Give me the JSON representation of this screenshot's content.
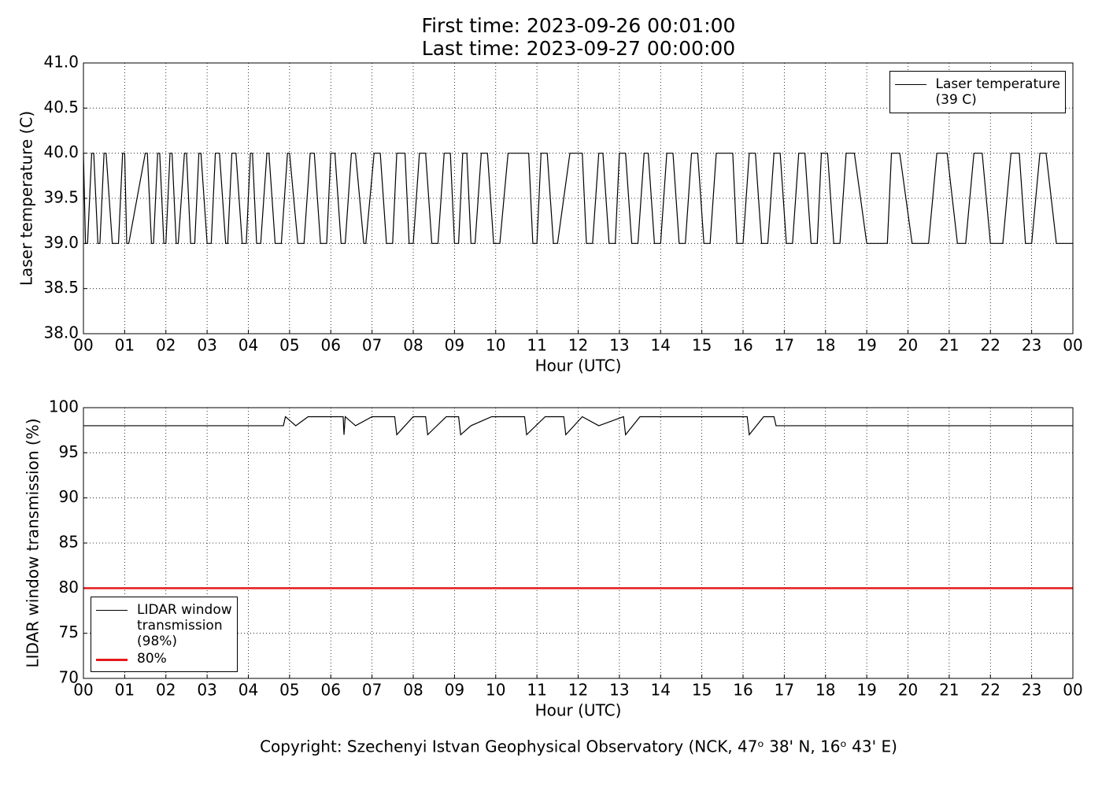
{
  "header": {
    "line1": "First time: 2023-09-26 00:01:00",
    "line2": "Last time: 2023-09-27 00:00:00"
  },
  "footer": "Copyright: Szechenyi Istvan Geophysical Observatory (NCK, 47ᵒ 38' N, 16ᵒ 43' E)",
  "chart_data": [
    {
      "type": "line",
      "ylabel": "Laser temperature (C)",
      "xlabel": "Hour (UTC)",
      "xlim": [
        0,
        24
      ],
      "ylim": [
        38,
        41
      ],
      "grid": true,
      "legend": "upper right",
      "xticks": [
        {
          "value": 0,
          "label": "00"
        },
        {
          "value": 1,
          "label": "01"
        },
        {
          "value": 2,
          "label": "02"
        },
        {
          "value": 3,
          "label": "03"
        },
        {
          "value": 4,
          "label": "04"
        },
        {
          "value": 5,
          "label": "05"
        },
        {
          "value": 6,
          "label": "06"
        },
        {
          "value": 7,
          "label": "07"
        },
        {
          "value": 8,
          "label": "08"
        },
        {
          "value": 9,
          "label": "09"
        },
        {
          "value": 10,
          "label": "10"
        },
        {
          "value": 11,
          "label": "11"
        },
        {
          "value": 12,
          "label": "12"
        },
        {
          "value": 13,
          "label": "13"
        },
        {
          "value": 14,
          "label": "14"
        },
        {
          "value": 15,
          "label": "15"
        },
        {
          "value": 16,
          "label": "16"
        },
        {
          "value": 17,
          "label": "17"
        },
        {
          "value": 18,
          "label": "18"
        },
        {
          "value": 19,
          "label": "19"
        },
        {
          "value": 20,
          "label": "20"
        },
        {
          "value": 21,
          "label": "21"
        },
        {
          "value": 22,
          "label": "22"
        },
        {
          "value": 23,
          "label": "23"
        },
        {
          "value": 24,
          "label": "00"
        }
      ],
      "yticks": [
        {
          "value": 38,
          "label": "38.0"
        },
        38.5,
        {
          "value": 39,
          "label": "39.0"
        },
        39.5,
        {
          "value": 40,
          "label": "40.0"
        },
        40.5,
        {
          "value": 41,
          "label": "41.0"
        }
      ],
      "series": [
        {
          "name": "Laser temperature\n(39 C)",
          "color": "#000000",
          "x": [
            0,
            0.05,
            0.1,
            0.2,
            0.25,
            0.35,
            0.4,
            0.5,
            0.55,
            0.7,
            0.85,
            0.95,
            1.0,
            1.05,
            1.1,
            1.5,
            1.55,
            1.65,
            1.7,
            1.8,
            1.85,
            1.95,
            2.0,
            2.1,
            2.15,
            2.25,
            2.3,
            2.45,
            2.5,
            2.6,
            2.7,
            2.8,
            2.85,
            3.0,
            3.1,
            3.2,
            3.3,
            3.45,
            3.5,
            3.6,
            3.7,
            3.85,
            3.95,
            4.05,
            4.1,
            4.2,
            4.3,
            4.45,
            4.5,
            4.65,
            4.8,
            4.95,
            5.0,
            5.2,
            5.35,
            5.5,
            5.6,
            5.75,
            5.9,
            6.0,
            6.1,
            6.25,
            6.35,
            6.5,
            6.6,
            6.8,
            6.85,
            7.05,
            7.2,
            7.35,
            7.5,
            7.6,
            7.8,
            7.9,
            8.0,
            8.15,
            8.3,
            8.45,
            8.6,
            8.75,
            8.9,
            9.0,
            9.1,
            9.2,
            9.3,
            9.4,
            9.5,
            9.65,
            9.8,
            9.95,
            10.1,
            10.3,
            10.8,
            10.9,
            11.0,
            11.1,
            11.25,
            11.4,
            11.5,
            11.8,
            12.1,
            12.2,
            12.35,
            12.5,
            12.6,
            12.75,
            12.9,
            13.0,
            13.15,
            13.3,
            13.45,
            13.6,
            13.7,
            13.85,
            14.0,
            14.15,
            14.3,
            14.45,
            14.6,
            14.75,
            14.9,
            15.05,
            15.2,
            15.35,
            15.75,
            15.85,
            16.0,
            16.15,
            16.3,
            16.45,
            16.6,
            16.75,
            16.9,
            17.05,
            17.2,
            17.35,
            17.5,
            17.65,
            17.8,
            17.9,
            18.05,
            18.2,
            18.35,
            18.5,
            18.7,
            19.0,
            19.5,
            19.6,
            19.8,
            20.1,
            20.5,
            20.7,
            20.95,
            21.2,
            21.4,
            21.6,
            21.8,
            22.0,
            22.3,
            22.5,
            22.7,
            22.85,
            23.0,
            23.2,
            23.35,
            23.6,
            24
          ],
          "values": [
            40,
            39,
            39,
            40,
            40,
            39,
            39,
            40,
            40,
            39,
            39,
            40,
            40,
            39,
            39,
            40,
            40,
            39,
            39,
            40,
            40,
            39,
            39,
            40,
            40,
            39,
            39,
            40,
            40,
            39,
            39,
            40,
            40,
            39,
            39,
            40,
            40,
            39,
            39,
            40,
            40,
            39,
            39,
            40,
            40,
            39,
            39,
            40,
            40,
            39,
            39,
            40,
            40,
            39,
            39,
            40,
            40,
            39,
            39,
            40,
            40,
            39,
            39,
            40,
            40,
            39,
            39,
            40,
            40,
            39,
            39,
            40,
            40,
            39,
            39,
            40,
            40,
            39,
            39,
            40,
            40,
            39,
            39,
            40,
            40,
            39,
            39,
            40,
            40,
            39,
            39,
            40,
            40,
            39,
            39,
            40,
            40,
            39,
            39,
            40,
            40,
            39,
            39,
            40,
            40,
            39,
            39,
            40,
            40,
            39,
            39,
            40,
            40,
            39,
            39,
            40,
            40,
            39,
            39,
            40,
            40,
            39,
            39,
            40,
            40,
            39,
            39,
            40,
            40,
            39,
            39,
            40,
            40,
            39,
            39,
            40,
            40,
            39,
            39,
            40,
            40,
            39,
            39,
            40,
            40,
            39,
            39,
            40,
            40,
            39,
            39,
            40,
            40,
            39,
            39,
            40,
            40,
            39,
            39,
            40,
            40,
            39,
            39,
            40,
            40,
            39,
            39
          ]
        }
      ]
    },
    {
      "type": "line",
      "ylabel": "LIDAR window transmission (%)",
      "xlabel": "Hour (UTC)",
      "xlim": [
        0,
        24
      ],
      "ylim": [
        70,
        100
      ],
      "grid": true,
      "legend": "lower left",
      "xticks": [
        {
          "value": 0,
          "label": "00"
        },
        {
          "value": 1,
          "label": "01"
        },
        {
          "value": 2,
          "label": "02"
        },
        {
          "value": 3,
          "label": "03"
        },
        {
          "value": 4,
          "label": "04"
        },
        {
          "value": 5,
          "label": "05"
        },
        {
          "value": 6,
          "label": "06"
        },
        {
          "value": 7,
          "label": "07"
        },
        {
          "value": 8,
          "label": "08"
        },
        {
          "value": 9,
          "label": "09"
        },
        {
          "value": 10,
          "label": "10"
        },
        {
          "value": 11,
          "label": "11"
        },
        {
          "value": 12,
          "label": "12"
        },
        {
          "value": 13,
          "label": "13"
        },
        {
          "value": 14,
          "label": "14"
        },
        {
          "value": 15,
          "label": "15"
        },
        {
          "value": 16,
          "label": "16"
        },
        {
          "value": 17,
          "label": "17"
        },
        {
          "value": 18,
          "label": "18"
        },
        {
          "value": 19,
          "label": "19"
        },
        {
          "value": 20,
          "label": "20"
        },
        {
          "value": 21,
          "label": "21"
        },
        {
          "value": 22,
          "label": "22"
        },
        {
          "value": 23,
          "label": "23"
        },
        {
          "value": 24,
          "label": "00"
        }
      ],
      "yticks": [
        70,
        75,
        80,
        85,
        90,
        95,
        100
      ],
      "series": [
        {
          "name": "LIDAR window\ntransmission\n(98%)",
          "color": "#000000",
          "x": [
            0,
            4.85,
            4.9,
            5.15,
            5.45,
            5.5,
            6.3,
            6.32,
            6.35,
            6.6,
            7.0,
            7.55,
            7.6,
            8.0,
            8.3,
            8.35,
            8.8,
            9.1,
            9.15,
            9.4,
            9.9,
            10.4,
            10.7,
            10.75,
            11.2,
            11.65,
            11.7,
            12.1,
            12.5,
            13.1,
            13.15,
            13.5,
            14.3,
            15.3,
            16.1,
            16.15,
            16.5,
            16.75,
            16.8,
            24
          ],
          "values": [
            98,
            98,
            99,
            98,
            99,
            99,
            99,
            97,
            99,
            98,
            99,
            99,
            97,
            99,
            99,
            97,
            99,
            99,
            97,
            98,
            99,
            99,
            99,
            97,
            99,
            99,
            97,
            99,
            98,
            99,
            97,
            99,
            99,
            99,
            99,
            97,
            99,
            99,
            98,
            98
          ]
        },
        {
          "name": "80%",
          "color": "#e41a1c",
          "x": [
            0,
            24
          ],
          "values": [
            80,
            80
          ]
        }
      ]
    }
  ]
}
